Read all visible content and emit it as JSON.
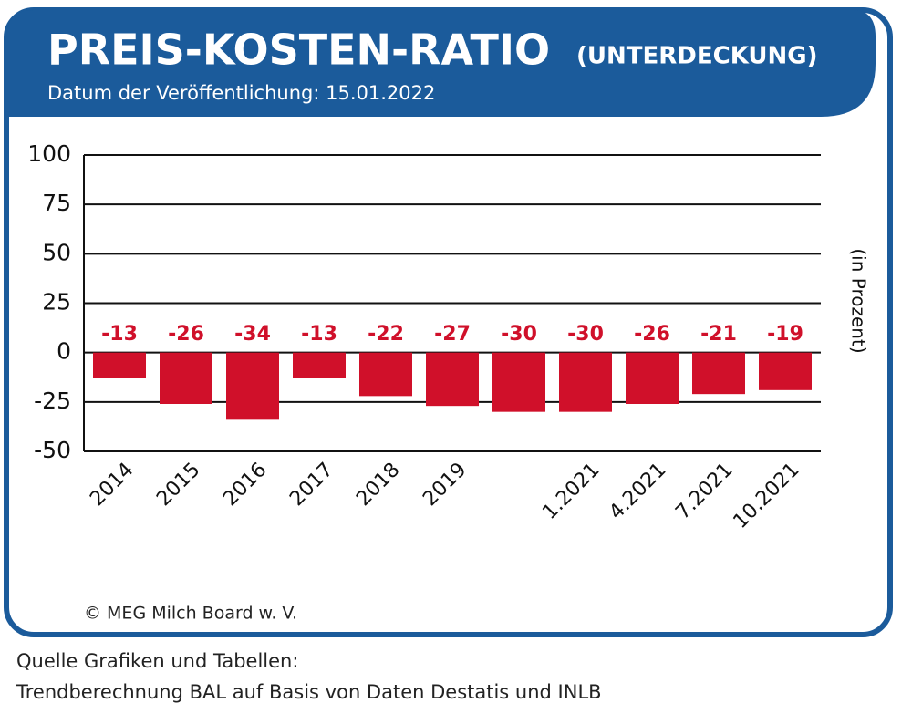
{
  "chart_data": {
    "type": "bar",
    "title": "PREIS-KOSTEN-RATIO",
    "title_note": "(UNTERDECKUNG)",
    "subtitle": "Datum der Veröffentlichung: 15.01.2022",
    "y_label": "(in Prozent)",
    "credit": "© MEG Milch Board w. V.",
    "source": [
      "Quelle Grafiken und Tabellen:",
      "Trendberechnung BAL auf Basis von Daten Destatis und INLB"
    ],
    "categories": [
      "2014",
      "2015",
      "2016",
      "2017",
      "2018",
      "2019",
      null,
      "1.2021",
      "4.2021",
      "7.2021",
      "10.2021"
    ],
    "values": [
      -13,
      -26,
      -34,
      -13,
      -22,
      -27,
      -30,
      -30,
      -26,
      -21,
      -19
    ],
    "color": "#d0102a",
    "ylim": [
      -50,
      100
    ],
    "yticks": [
      -50,
      -25,
      0,
      25,
      50,
      75,
      100
    ],
    "grid": true
  }
}
